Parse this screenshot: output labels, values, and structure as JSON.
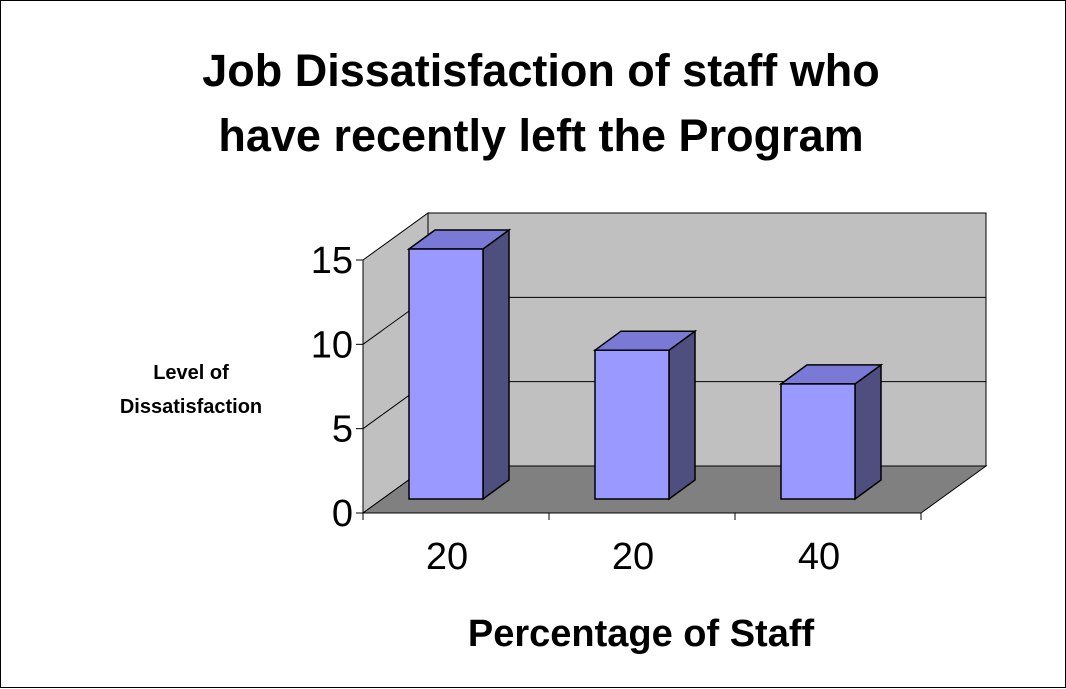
{
  "chart_data": {
    "type": "bar",
    "title_lines": [
      "Job Dissatisfaction of staff who",
      "have recently left the Program"
    ],
    "xlabel": "Percentage of Staff",
    "ylabel_lines": [
      "Level of",
      "Dissatisfaction"
    ],
    "categories": [
      "20",
      "20",
      "40"
    ],
    "values": [
      15,
      9,
      7
    ],
    "ylim": [
      0,
      15
    ],
    "yticks": [
      0,
      5,
      10,
      15
    ],
    "grid": true,
    "legend": "none",
    "style": "3d-column",
    "colors": {
      "bar_front": "#9999FF",
      "bar_side": "#4F4F7F",
      "bar_top": "#7A7AD6",
      "back_wall": "#C0C0C0",
      "floor": "#808080"
    }
  }
}
